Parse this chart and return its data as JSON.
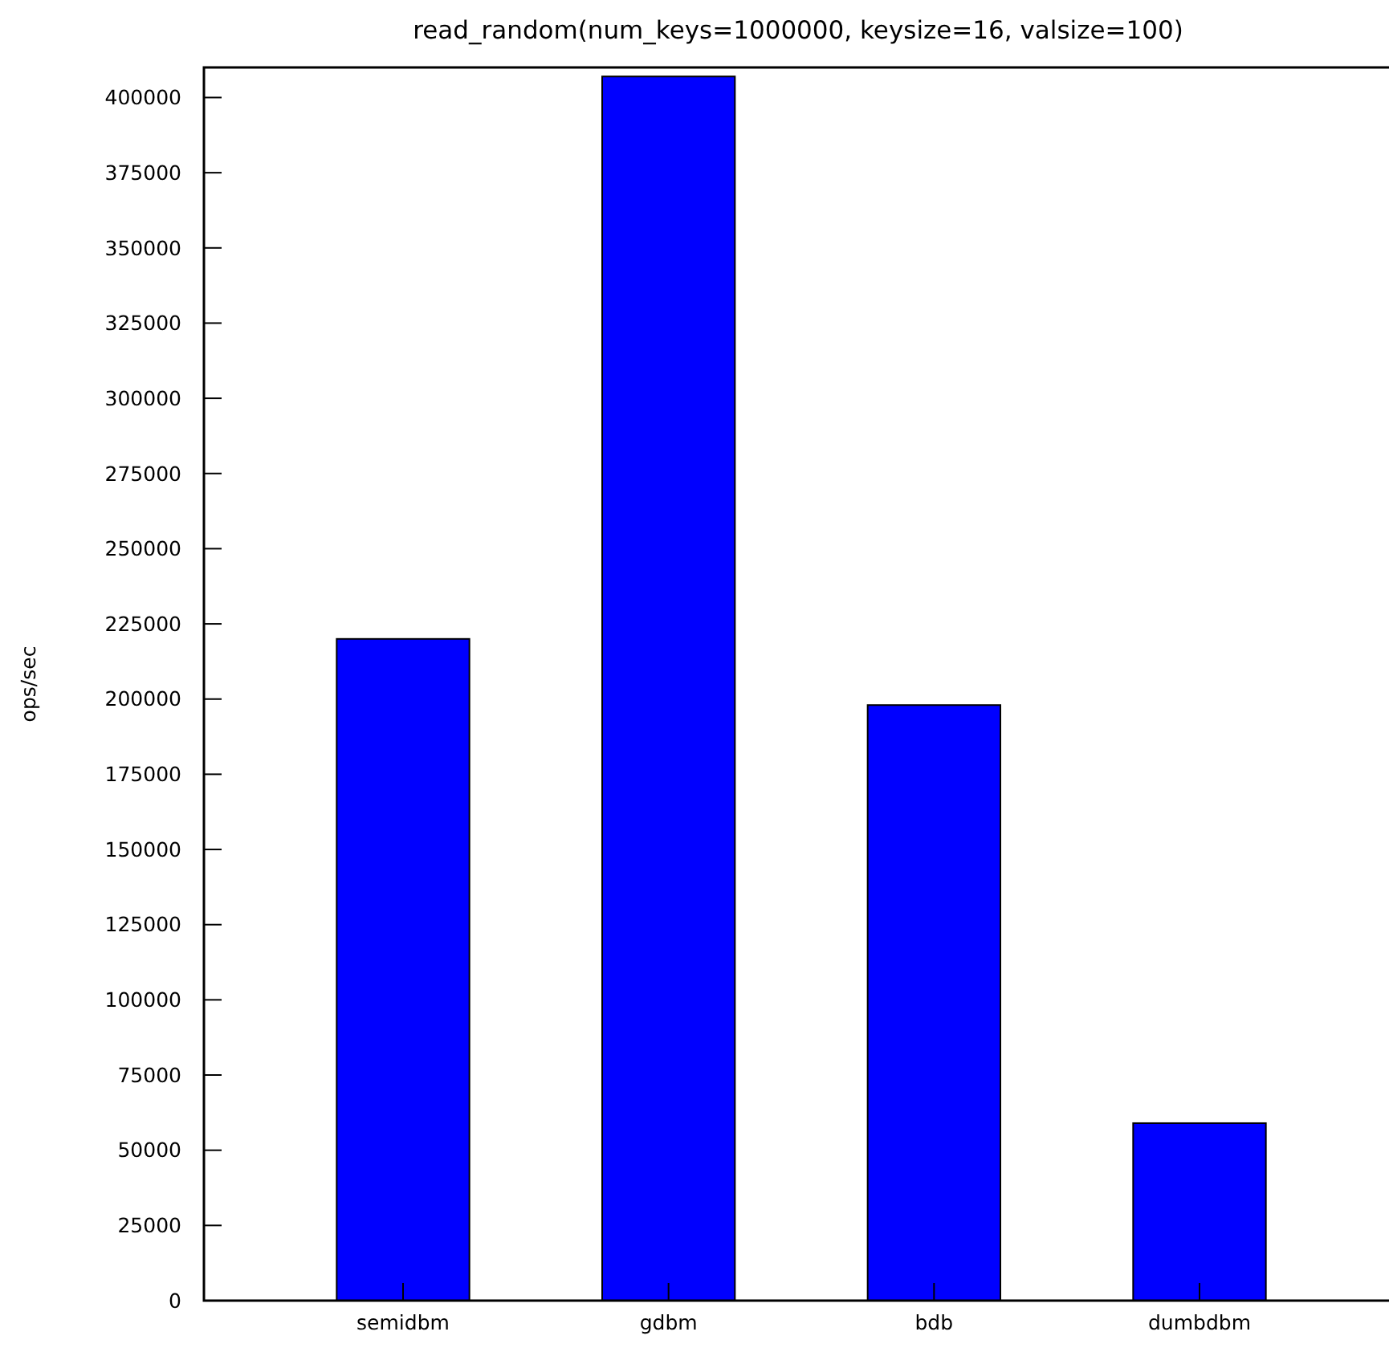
{
  "chart_data": {
    "type": "bar",
    "title": "read_random(num_keys=1000000, keysize=16, valsize=100)",
    "ylabel": "ops/sec",
    "categories": [
      "semidbm",
      "gdbm",
      "bdb",
      "dumbdbm"
    ],
    "values": [
      220000,
      407000,
      198000,
      59000
    ],
    "color": "#0000ff",
    "ylim": [
      0,
      410000
    ],
    "yticks": [
      0,
      25000,
      50000,
      75000,
      100000,
      125000,
      150000,
      175000,
      200000,
      225000,
      250000,
      275000,
      300000,
      325000,
      350000,
      375000,
      400000
    ]
  }
}
